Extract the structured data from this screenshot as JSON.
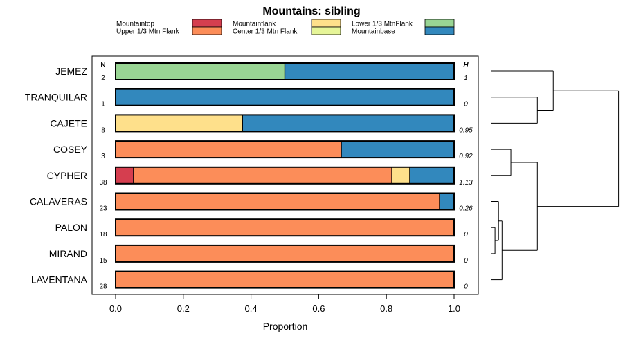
{
  "chart_data": {
    "type": "stacked-bar-horizontal",
    "title": "Mountains: sibling",
    "xlabel": "Proportion",
    "xlim": [
      0,
      1
    ],
    "xticks": [
      "0.0",
      "0.2",
      "0.4",
      "0.6",
      "0.8",
      "1.0"
    ],
    "n_header": "N",
    "h_header": "H",
    "legend": [
      {
        "label": "Mountaintop",
        "color": "#d53e4f"
      },
      {
        "label": "Upper 1/3 Mtn Flank",
        "color": "#fc8d59"
      },
      {
        "label": "Mountainflank",
        "color": "#fee08b"
      },
      {
        "label": "Center 1/3 Mtn Flank",
        "color": "#e6f598"
      },
      {
        "label": "Lower 1/3 MtnFlank",
        "color": "#99d594"
      },
      {
        "label": "Mountainbase",
        "color": "#3288bd"
      }
    ],
    "rows": [
      {
        "name": "JEMEZ",
        "n": "2",
        "h": "1",
        "values": [
          0,
          0,
          0,
          0,
          0.5,
          0.5
        ]
      },
      {
        "name": "TRANQUILAR",
        "n": "1",
        "h": "0",
        "values": [
          0,
          0,
          0,
          0,
          0,
          1.0
        ]
      },
      {
        "name": "CAJETE",
        "n": "8",
        "h": "0.95",
        "values": [
          0,
          0,
          0.375,
          0,
          0,
          0.625
        ]
      },
      {
        "name": "COSEY",
        "n": "3",
        "h": "0.92",
        "values": [
          0,
          0.667,
          0,
          0,
          0,
          0.333
        ]
      },
      {
        "name": "CYPHER",
        "n": "38",
        "h": "1.13",
        "values": [
          0.053,
          0.763,
          0.053,
          0,
          0,
          0.131
        ]
      },
      {
        "name": "CALAVERAS",
        "n": "23",
        "h": "0.26",
        "values": [
          0,
          0.957,
          0,
          0,
          0,
          0.043
        ]
      },
      {
        "name": "PALON",
        "n": "18",
        "h": "0",
        "values": [
          0,
          1.0,
          0,
          0,
          0,
          0
        ]
      },
      {
        "name": "MIRAND",
        "n": "15",
        "h": "0",
        "values": [
          0,
          1.0,
          0,
          0,
          0,
          0
        ]
      },
      {
        "name": "LAVENTANA",
        "n": "28",
        "h": "0",
        "values": [
          0,
          1.0,
          0,
          0,
          0,
          0
        ]
      }
    ],
    "dendrogram": {
      "merges": [
        {
          "a": "PALON",
          "b": "MIRAND",
          "height": 0.02
        },
        {
          "a": "CALAVERAS",
          "b": "m0",
          "height": 0.04
        },
        {
          "a": "m1",
          "b": "LAVENTANA",
          "height": 0.06
        },
        {
          "a": "COSEY",
          "b": "CYPHER",
          "height": 0.11
        },
        {
          "a": "m3",
          "b": "m2",
          "height": 0.26
        },
        {
          "a": "TRANQUILAR",
          "b": "CAJETE",
          "height": 0.26
        },
        {
          "a": "JEMEZ",
          "b": "m5",
          "height": 0.35
        },
        {
          "a": "m6",
          "b": "m4",
          "height": 0.72
        }
      ]
    }
  }
}
